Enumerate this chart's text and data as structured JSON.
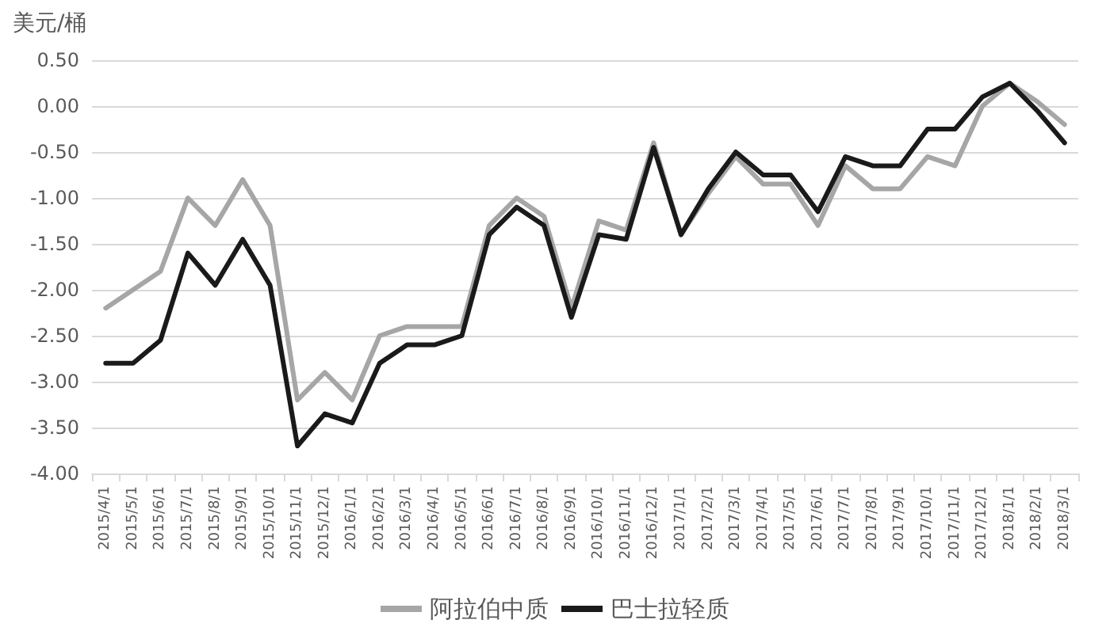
{
  "chart_data": {
    "type": "line",
    "ylabel": "美元/桶",
    "categories": [
      "2015/4/1",
      "2015/5/1",
      "2015/6/1",
      "2015/7/1",
      "2015/8/1",
      "2015/9/1",
      "2015/10/1",
      "2015/11/1",
      "2015/12/1",
      "2016/1/1",
      "2016/2/1",
      "2016/3/1",
      "2016/4/1",
      "2016/5/1",
      "2016/6/1",
      "2016/7/1",
      "2016/8/1",
      "2016/9/1",
      "2016/10/1",
      "2016/11/1",
      "2016/12/1",
      "2017/1/1",
      "2017/2/1",
      "2017/3/1",
      "2017/4/1",
      "2017/5/1",
      "2017/6/1",
      "2017/7/1",
      "2017/8/1",
      "2017/9/1",
      "2017/10/1",
      "2017/11/1",
      "2017/12/1",
      "2018/1/1",
      "2018/2/1",
      "2018/3/1"
    ],
    "series": [
      {
        "name": "阿拉伯中质",
        "color": "#a6a6a6",
        "values": [
          -2.2,
          -2.0,
          -1.8,
          -1.0,
          -1.3,
          -0.8,
          -1.3,
          -3.2,
          -2.9,
          -3.2,
          -2.5,
          -2.4,
          -2.4,
          -2.4,
          -1.3,
          -1.0,
          -1.2,
          -2.2,
          -1.25,
          -1.35,
          -0.4,
          -1.4,
          -0.95,
          -0.55,
          -0.85,
          -0.85,
          -1.3,
          -0.65,
          -0.9,
          -0.9,
          -0.55,
          -0.65,
          0.0,
          0.25,
          0.05,
          -0.2
        ]
      },
      {
        "name": "巴士拉轻质",
        "color": "#1a1a1a",
        "values": [
          -2.8,
          -2.8,
          -2.55,
          -1.6,
          -1.95,
          -1.45,
          -1.95,
          -3.7,
          -3.35,
          -3.45,
          -2.8,
          -2.6,
          -2.6,
          -2.5,
          -1.4,
          -1.1,
          -1.3,
          -2.3,
          -1.4,
          -1.45,
          -0.45,
          -1.4,
          -0.9,
          -0.5,
          -0.75,
          -0.75,
          -1.15,
          -0.55,
          -0.65,
          -0.65,
          -0.25,
          -0.25,
          0.1,
          0.25,
          -0.05,
          -0.4
        ]
      }
    ],
    "ylim": [
      -4,
      0.5
    ],
    "yticks": [
      {
        "value": -4,
        "label": "-4.00"
      },
      {
        "value": -3.5,
        "label": "-3.50"
      },
      {
        "value": -3,
        "label": "-3.00"
      },
      {
        "value": -2.5,
        "label": "-2.50"
      },
      {
        "value": -2,
        "label": "-2.00"
      },
      {
        "value": -1.5,
        "label": "-1.50"
      },
      {
        "value": -1,
        "label": "-1.00"
      },
      {
        "value": -0.5,
        "label": "-0.50"
      },
      {
        "value": 0,
        "label": "0.00"
      },
      {
        "value": 0.5,
        "label": "0.50"
      }
    ],
    "grid": "y",
    "legend": "bottom",
    "marker": "none",
    "line_style": "solid"
  }
}
